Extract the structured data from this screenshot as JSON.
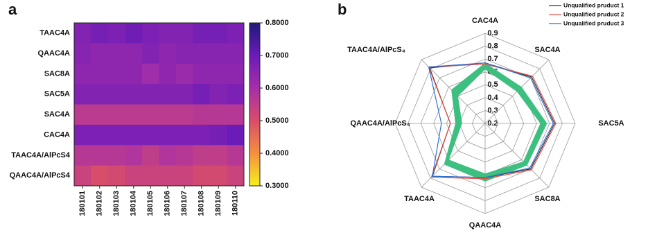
{
  "chart_data": [
    {
      "type": "heatmap",
      "title": "a",
      "rows": [
        "TAAC4A",
        "QAAC4A",
        "SAC8A",
        "SAC5A",
        "SAC4A",
        "CAC4A",
        "TAAC4A/AlPcS4",
        "QAAC4A/AlPcS4"
      ],
      "columns": [
        "180101",
        "180102",
        "180103",
        "180104",
        "180105",
        "180106",
        "180107",
        "180108",
        "180109",
        "180110"
      ],
      "values": [
        [
          0.66,
          0.68,
          0.67,
          0.69,
          0.67,
          0.66,
          0.66,
          0.68,
          0.68,
          0.67
        ],
        [
          0.65,
          0.64,
          0.64,
          0.64,
          0.66,
          0.64,
          0.65,
          0.65,
          0.65,
          0.65
        ],
        [
          0.64,
          0.64,
          0.64,
          0.64,
          0.61,
          0.64,
          0.62,
          0.64,
          0.64,
          0.64
        ],
        [
          0.66,
          0.66,
          0.66,
          0.66,
          0.66,
          0.66,
          0.66,
          0.68,
          0.66,
          0.67
        ],
        [
          0.56,
          0.56,
          0.56,
          0.56,
          0.56,
          0.56,
          0.56,
          0.57,
          0.57,
          0.57
        ],
        [
          0.67,
          0.67,
          0.67,
          0.67,
          0.67,
          0.67,
          0.67,
          0.67,
          0.68,
          0.7
        ],
        [
          0.57,
          0.57,
          0.57,
          0.58,
          0.55,
          0.58,
          0.57,
          0.55,
          0.55,
          0.57
        ],
        [
          0.53,
          0.5,
          0.51,
          0.53,
          0.53,
          0.53,
          0.53,
          0.51,
          0.51,
          0.53
        ]
      ],
      "colormap": [
        "#f5f020",
        "#f59040",
        "#d84d6a",
        "#a62fa8",
        "#6a1bb8",
        "#1e1a7a"
      ],
      "clim": [
        0.3,
        0.8
      ],
      "cticks": [
        {
          "value": 0.3,
          "label": "0.3000"
        },
        {
          "value": 0.4,
          "label": "0.4000"
        },
        {
          "value": 0.5,
          "label": "0.5000"
        },
        {
          "value": 0.6,
          "label": "0.6000"
        },
        {
          "value": 0.7,
          "label": "0.7000"
        },
        {
          "value": 0.8,
          "label": "0.8000"
        }
      ]
    },
    {
      "type": "radar",
      "title": "b",
      "categories": [
        "CAC4A",
        "SAC4A",
        "SAC5A",
        "SAC8A",
        "QAAC4A",
        "TAAC4A",
        "QAAC4A/AlPcS₄",
        "TAAC4A/AlPcS₄"
      ],
      "rlim": [
        0.2,
        0.9
      ],
      "rticks": [
        0.2,
        0.3,
        0.4,
        0.5,
        0.6,
        0.7,
        0.8,
        0.9
      ],
      "series": [
        {
          "name": "Unqualified pruduct 1",
          "color": "#333333",
          "values": [
            0.67,
            0.71,
            0.74,
            0.7,
            0.62,
            0.78,
            0.47,
            0.81
          ]
        },
        {
          "name": "Unqualified pruduct 2",
          "color": "#e8504a",
          "values": [
            0.66,
            0.72,
            0.75,
            0.71,
            0.63,
            0.79,
            0.47,
            0.82
          ]
        },
        {
          "name": "Unqualified pruduct 3",
          "color": "#2a6fd6",
          "values": [
            0.67,
            0.7,
            0.73,
            0.69,
            0.62,
            0.78,
            0.54,
            0.82
          ]
        }
      ],
      "band": {
        "color": "#3dbf7f",
        "lower": [
          0.62,
          0.55,
          0.63,
          0.62,
          0.59,
          0.6,
          0.38,
          0.5
        ],
        "upper": [
          0.67,
          0.6,
          0.68,
          0.66,
          0.65,
          0.65,
          0.43,
          0.57
        ]
      }
    }
  ]
}
